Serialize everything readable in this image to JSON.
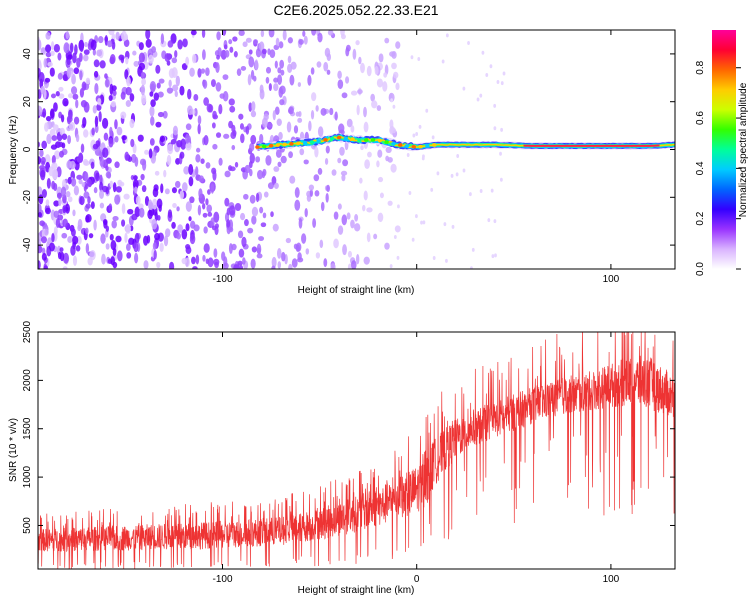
{
  "title": "C2E6.2025.052.22.33.E21",
  "chart_data": [
    {
      "type": "heatmap",
      "xlabel": "Height of straight line (km)",
      "ylabel": "Frequency (Hz)",
      "xlim": [
        -195,
        133
      ],
      "ylim": [
        -50,
        50
      ],
      "xticks": [
        -100,
        0,
        100
      ],
      "xtick_labels": [
        "-100",
        "",
        "100"
      ],
      "yticks": [
        -40,
        -20,
        0,
        20,
        40
      ],
      "ytick_labels": [
        "-40",
        "-20",
        "0",
        "20",
        "40"
      ],
      "colorbar": {
        "label": "Normalized spectral amplitude",
        "range": [
          0,
          0.95
        ],
        "ticks": [
          0.0,
          0.2,
          0.4,
          0.6,
          0.8
        ],
        "tick_labels": [
          "0.0",
          "0.2",
          "0.4",
          "0.6",
          "0.8"
        ],
        "colors": [
          "#ffffff",
          "#d9b3ff",
          "#9933ff",
          "#3300ff",
          "#0066ff",
          "#00ccff",
          "#00ff99",
          "#33ff00",
          "#ccff00",
          "#ffcc00",
          "#ff6600",
          "#ff0033",
          "#ff0099"
        ]
      },
      "ridge": {
        "description_points_km_hz": [
          [
            -82,
            1
          ],
          [
            -70,
            2
          ],
          [
            -55,
            3
          ],
          [
            -40,
            5
          ],
          [
            -30,
            4
          ],
          [
            -20,
            4
          ],
          [
            -10,
            2
          ],
          [
            0,
            1
          ],
          [
            10,
            2
          ],
          [
            20,
            2
          ],
          [
            40,
            2
          ],
          [
            60,
            1.5
          ],
          [
            80,
            1.5
          ],
          [
            100,
            1.5
          ],
          [
            120,
            1.5
          ],
          [
            133,
            2
          ]
        ],
        "start_km": -82
      },
      "noise_extent_km": -15
    },
    {
      "type": "line",
      "xlabel": "Height of straight line (km)",
      "ylabel": "SNR (10 * v/v)",
      "xlim": [
        -195,
        133
      ],
      "ylim": [
        50,
        2500
      ],
      "xticks": [
        -100,
        0,
        100
      ],
      "xtick_labels": [
        "-100",
        "0",
        "100"
      ],
      "yticks": [
        500,
        1000,
        1500,
        2000,
        2500
      ],
      "ytick_labels": [
        "500",
        "1000",
        "1500",
        "2000",
        "2500"
      ],
      "series_color": "#ee3333",
      "envelope": {
        "x": [
          -195,
          -150,
          -100,
          -70,
          -50,
          -30,
          -20,
          -10,
          0,
          5,
          10,
          20,
          30,
          50,
          70,
          90,
          110,
          120,
          133
        ],
        "low": [
          120,
          120,
          130,
          160,
          200,
          260,
          300,
          350,
          400,
          450,
          700,
          1000,
          1150,
          1300,
          1450,
          1500,
          1500,
          1450,
          1400
        ],
        "mid": [
          280,
          300,
          330,
          380,
          430,
          500,
          560,
          650,
          800,
          950,
          1150,
          1350,
          1450,
          1560,
          1650,
          1720,
          1780,
          1820,
          1800
        ],
        "high": [
          550,
          600,
          650,
          700,
          800,
          950,
          1050,
          1150,
          1300,
          1450,
          1600,
          1750,
          1850,
          2000,
          2150,
          2250,
          2450,
          2450,
          2200
        ]
      }
    }
  ]
}
